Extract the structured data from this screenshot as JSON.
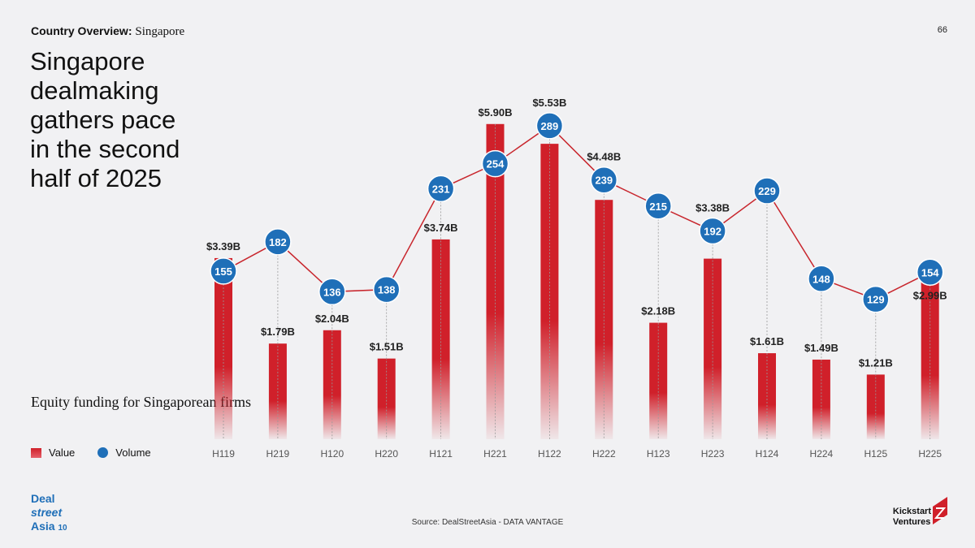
{
  "header": {
    "kicker": "Country Overview:",
    "kicker_country": "Singapore",
    "page_number": "66"
  },
  "title": "Singapore dealmaking gathers pace in the second half of 2025",
  "subtitle": "Equity funding for Singaporean firms",
  "legend": {
    "value": "Value",
    "volume": "Volume"
  },
  "footer": {
    "source": "Source: DealStreetAsia - DATA VANTAGE",
    "logo_left": "DealStreetAsia 10",
    "logo_right": "Kickstart Ventures"
  },
  "colors": {
    "value": "#d0202a",
    "volume": "#1f6fb8",
    "line": "#c8262d",
    "background": "#f1f1f3"
  },
  "chart_data": {
    "type": "bar+line",
    "categories": [
      "H119",
      "H219",
      "H120",
      "H220",
      "H121",
      "H221",
      "H122",
      "H222",
      "H123",
      "H223",
      "H124",
      "H224",
      "H125",
      "H225"
    ],
    "series": [
      {
        "name": "Value",
        "type": "bar",
        "unit": "USD billion",
        "values": [
          3.39,
          1.79,
          2.04,
          1.51,
          3.74,
          5.9,
          5.53,
          4.48,
          2.18,
          3.38,
          1.61,
          1.49,
          1.21,
          2.99
        ],
        "labels": [
          "$3.39B",
          "$1.79B",
          "$2.04B",
          "$1.51B",
          "$3.74B",
          "$5.90B",
          "$5.53B",
          "$4.48B",
          "$2.18B",
          "$3.38B",
          "$1.61B",
          "$1.49B",
          "$1.21B",
          "$2.99B"
        ]
      },
      {
        "name": "Volume",
        "type": "line",
        "values": [
          155,
          182,
          136,
          138,
          231,
          254,
          289,
          239,
          215,
          192,
          229,
          148,
          129,
          154
        ]
      }
    ],
    "legend": "bottom-left",
    "grid": false
  }
}
